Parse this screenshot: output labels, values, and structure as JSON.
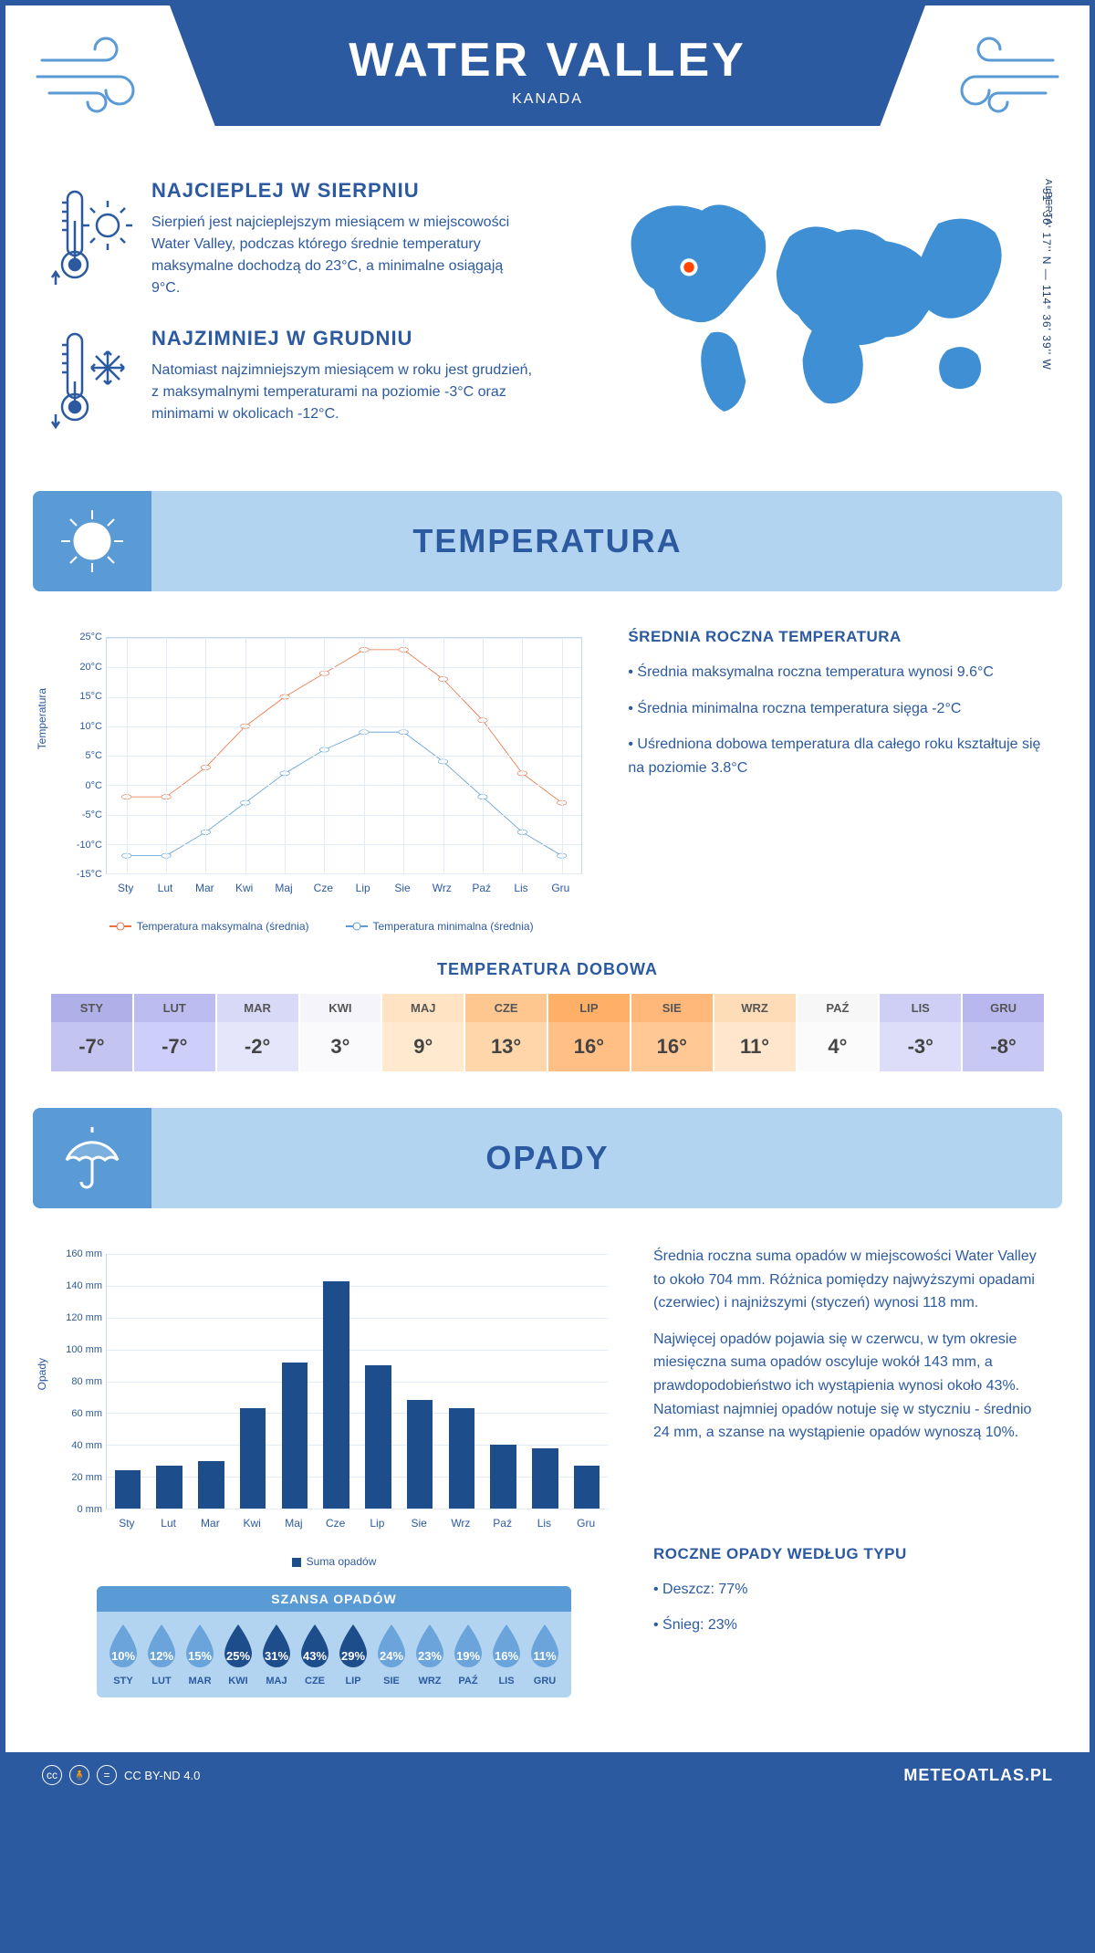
{
  "header": {
    "title": "WATER VALLEY",
    "subtitle": "KANADA"
  },
  "coords": "51° 30' 17'' N — 114° 36' 39'' W",
  "region": "ALBERTA",
  "map_marker": {
    "color": "#ff4500",
    "ring": "#ffffff"
  },
  "intro": {
    "hot": {
      "title": "NAJCIEPLEJ W SIERPNIU",
      "text": "Sierpień jest najcieplejszym miesiącem w miejscowości Water Valley, podczas którego średnie temperatury maksymalne dochodzą do 23°C, a minimalne osiągają 9°C."
    },
    "cold": {
      "title": "NAJZIMNIEJ W GRUDNIU",
      "text": "Natomiast najzimniejszym miesiącem w roku jest grudzień, z maksymalnymi temperaturami na poziomie -3°C oraz minimami w okolicach -12°C."
    }
  },
  "sections": {
    "temperature": "TEMPERATURA",
    "precipitation": "OPADY"
  },
  "months": [
    "Sty",
    "Lut",
    "Mar",
    "Kwi",
    "Maj",
    "Cze",
    "Lip",
    "Sie",
    "Wrz",
    "Paź",
    "Lis",
    "Gru"
  ],
  "months_upper": [
    "STY",
    "LUT",
    "MAR",
    "KWI",
    "MAJ",
    "CZE",
    "LIP",
    "SIE",
    "WRZ",
    "PAŹ",
    "LIS",
    "GRU"
  ],
  "temp_chart": {
    "type": "line",
    "y_label": "Temperatura",
    "ylim": [
      -15,
      25
    ],
    "ytick_step": 5,
    "y_ticks": [
      "-15°C",
      "-10°C",
      "-5°C",
      "0°C",
      "5°C",
      "10°C",
      "15°C",
      "20°C",
      "25°C"
    ],
    "max_series": [
      -2,
      -2,
      3,
      10,
      15,
      19,
      23,
      23,
      18,
      11,
      2,
      -3
    ],
    "min_series": [
      -12,
      -12,
      -8,
      -3,
      2,
      6,
      9,
      9,
      4,
      -2,
      -8,
      -12
    ],
    "max_color": "#e97040",
    "min_color": "#5a9bd5",
    "grid_color": "#e2ecf7",
    "legend_max": "Temperatura maksymalna (średnia)",
    "legend_min": "Temperatura minimalna (średnia)"
  },
  "temp_summary": {
    "heading": "ŚREDNIA ROCZNA TEMPERATURA",
    "bullets": [
      "• Średnia maksymalna roczna temperatura wynosi 9.6°C",
      "• Średnia minimalna roczna temperatura sięga -2°C",
      "• Uśredniona dobowa temperatura dla całego roku kształtuje się na poziomie 3.8°C"
    ]
  },
  "daily_temp": {
    "heading": "TEMPERATURA DOBOWA",
    "values": [
      "-7°",
      "-7°",
      "-2°",
      "3°",
      "9°",
      "13°",
      "16°",
      "16°",
      "11°",
      "4°",
      "-3°",
      "-8°"
    ],
    "header_bg": [
      "#b0b0e8",
      "#bcbcf0",
      "#d8d8f7",
      "#f4f4fa",
      "#ffe3c2",
      "#ffc790",
      "#ffb066",
      "#ffb87a",
      "#ffdcb8",
      "#f7f7f7",
      "#cfcff5",
      "#b8b8ee"
    ],
    "value_bg": [
      "#c4c4f0",
      "#cecefa",
      "#e6e6fb",
      "#fafafd",
      "#ffeacf",
      "#ffd5aa",
      "#ffbf85",
      "#ffc894",
      "#ffe6cc",
      "#fbfbfb",
      "#ddddf9",
      "#c8c8f4"
    ]
  },
  "precip_chart": {
    "type": "bar",
    "y_label": "Opady",
    "ylim": [
      0,
      160
    ],
    "ytick_step": 20,
    "y_ticks": [
      "0 mm",
      "20 mm",
      "40 mm",
      "60 mm",
      "80 mm",
      "100 mm",
      "120 mm",
      "140 mm",
      "160 mm"
    ],
    "values": [
      24,
      27,
      30,
      63,
      92,
      143,
      90,
      68,
      63,
      40,
      38,
      27
    ],
    "bar_color": "#1e4d8b",
    "grid_color": "#e2ecf7",
    "legend": "Suma opadów"
  },
  "precip_text": {
    "p1": "Średnia roczna suma opadów w miejscowości Water Valley to około 704 mm. Różnica pomiędzy najwyższymi opadami (czerwiec) i najniższymi (styczeń) wynosi 118 mm.",
    "p2": "Najwięcej opadów pojawia się w czerwcu, w tym okresie miesięczna suma opadów oscyluje wokół 143 mm, a prawdopodobieństwo ich wystąpienia wynosi około 43%. Natomiast najmniej opadów notuje się w styczniu - średnio 24 mm, a szanse na wystąpienie opadów wynoszą 10%."
  },
  "rain_chance": {
    "heading": "SZANSA OPADÓW",
    "values": [
      "10%",
      "12%",
      "15%",
      "25%",
      "31%",
      "43%",
      "29%",
      "24%",
      "23%",
      "19%",
      "16%",
      "11%"
    ],
    "colors": [
      "#6ba3db",
      "#6ba3db",
      "#6ba3db",
      "#1e4d8b",
      "#1e4d8b",
      "#1e4d8b",
      "#1e4d8b",
      "#6ba3db",
      "#6ba3db",
      "#6ba3db",
      "#6ba3db",
      "#6ba3db"
    ]
  },
  "precip_type": {
    "heading": "ROCZNE OPADY WEDŁUG TYPU",
    "lines": [
      "• Deszcz: 77%",
      "• Śnieg: 23%"
    ]
  },
  "footer": {
    "license": "CC BY-ND 4.0",
    "site": "METEOATLAS.PL"
  },
  "colors": {
    "primary": "#2c5aa0",
    "banner_light": "#b3d4f0",
    "banner_mid": "#5a9bd5"
  }
}
